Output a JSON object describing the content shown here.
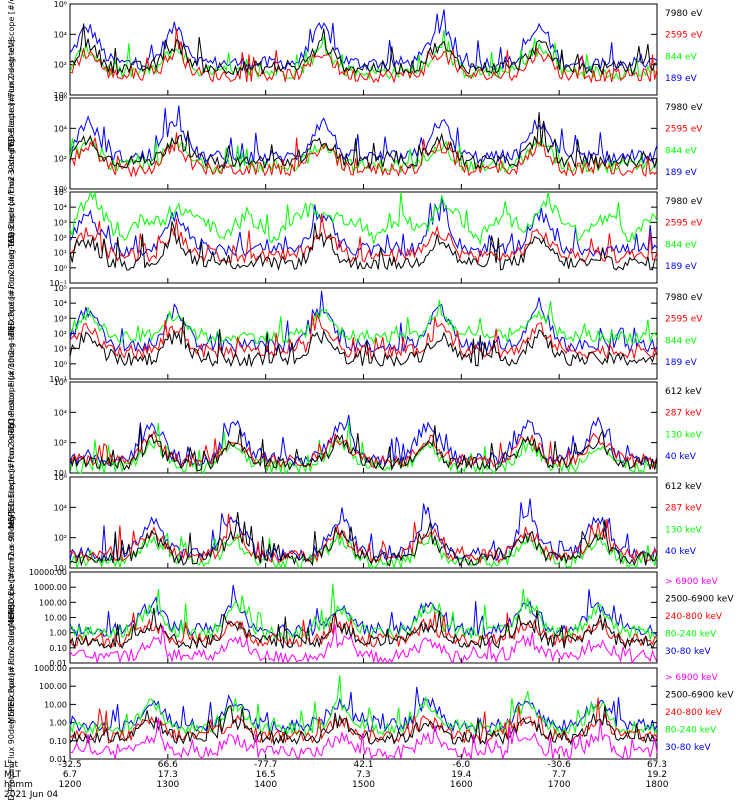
{
  "figure": {
    "date_label": "2021 Jun 04",
    "row_labels": [
      "Lat",
      "MLT",
      "hhmm"
    ],
    "colors": {
      "blue": "#0000ff",
      "red": "#ff0000",
      "green": "#00ff00",
      "black": "#000000",
      "magenta": "#ff00ff"
    }
  },
  "chart_data": [
    {
      "type": "line",
      "ylabel": "TED Electron Flux 0deg telescope [#/cm2-s-str-eV]",
      "ylim": [
        1,
        1000000
      ],
      "yscale": "log",
      "yticks": [
        "10⁰",
        "10²",
        "10⁴",
        "10⁶"
      ],
      "series": [
        {
          "name": "7980 eV",
          "color": "#000000"
        },
        {
          "name": "2595 eV",
          "color": "#ff0000"
        },
        {
          "name": "844 eV",
          "color": "#00ff00"
        },
        {
          "name": "189 eV",
          "color": "#0000ff"
        }
      ]
    },
    {
      "type": "line",
      "ylabel": "TED Electron Flux 30deg telescope [#/cm2-s-str-eV]",
      "ylim": [
        1,
        1000000
      ],
      "yscale": "log",
      "yticks": [
        "10⁰",
        "10²",
        "10⁴",
        "10⁶"
      ],
      "series": [
        {
          "name": "7980 eV",
          "color": "#000000"
        },
        {
          "name": "2595 eV",
          "color": "#ff0000"
        },
        {
          "name": "844 eV",
          "color": "#00ff00"
        },
        {
          "name": "189 eV",
          "color": "#0000ff"
        }
      ]
    },
    {
      "type": "line",
      "ylabel": "TED Proton Flux 0deg telescope [#/cm2-s-str-eV]",
      "ylim": [
        0.1,
        100000
      ],
      "yscale": "log",
      "yticks": [
        "10⁻¹",
        "10⁰",
        "10¹",
        "10²",
        "10³",
        "10⁴",
        "10⁵"
      ],
      "series": [
        {
          "name": "7980 eV",
          "color": "#000000"
        },
        {
          "name": "2595 eV",
          "color": "#ff0000"
        },
        {
          "name": "844 eV",
          "color": "#00ff00"
        },
        {
          "name": "189 eV",
          "color": "#0000ff"
        }
      ]
    },
    {
      "type": "line",
      "ylabel": "TED Proton Flux 30deg telescope [#/cm2-s-str-eV]",
      "ylim": [
        0.1,
        100000
      ],
      "yscale": "log",
      "yticks": [
        "10⁻¹",
        "10⁰",
        "10¹",
        "10²",
        "10³",
        "10⁴",
        "10⁵"
      ],
      "series": [
        {
          "name": "7980 eV",
          "color": "#000000"
        },
        {
          "name": "2595 eV",
          "color": "#ff0000"
        },
        {
          "name": "844 eV",
          "color": "#00ff00"
        },
        {
          "name": "189 eV",
          "color": "#0000ff"
        }
      ]
    },
    {
      "type": "line",
      "ylabel": "MEPED Electron Flux 0deg telescope [#/cm2-s-str]",
      "ylim": [
        10,
        10000000
      ],
      "yscale": "log",
      "yticks": [
        "10¹",
        "10²",
        "10⁴",
        "10⁶"
      ],
      "series": [
        {
          "name": "612 keV",
          "color": "#000000"
        },
        {
          "name": "287 keV",
          "color": "#ff0000"
        },
        {
          "name": "130 keV",
          "color": "#00ff00"
        },
        {
          "name": "40 keV",
          "color": "#0000ff"
        }
      ]
    },
    {
      "type": "line",
      "ylabel": "MEPED Electron Flux 90deg telescope [#/cm2-s-str]",
      "ylim": [
        10,
        10000000
      ],
      "yscale": "log",
      "yticks": [
        "10¹",
        "10²",
        "10⁴",
        "10⁶"
      ],
      "series": [
        {
          "name": "612 keV",
          "color": "#000000"
        },
        {
          "name": "287 keV",
          "color": "#ff0000"
        },
        {
          "name": "130 keV",
          "color": "#00ff00"
        },
        {
          "name": "40 keV",
          "color": "#0000ff"
        }
      ]
    },
    {
      "type": "line",
      "ylabel": "MEPED Proton Flux 0deg telescope [#/cm2-s-str-keV]",
      "ylim": [
        0.01,
        10000
      ],
      "yscale": "log",
      "yticks": [
        "0.01",
        "0.10",
        "1.00",
        "10.00",
        "100.00",
        "1000.00",
        "10000.00"
      ],
      "series": [
        {
          "name": "> 6900 keV",
          "color": "#ff00ff"
        },
        {
          "name": "2500-6900 keV",
          "color": "#000000"
        },
        {
          "name": "240-800 keV",
          "color": "#ff0000"
        },
        {
          "name": "80-240 keV",
          "color": "#00ff00"
        },
        {
          "name": "30-80 keV",
          "color": "#0000ff"
        }
      ]
    },
    {
      "type": "line",
      "ylabel": "MEPED Proton Flux 90deg telescope [#/cm2-s-str-keV]",
      "ylim": [
        0.01,
        10000
      ],
      "yscale": "log",
      "yticks": [
        "0.01",
        "0.10",
        "1.00",
        "10.00",
        "100.00",
        "1000.00"
      ],
      "series": [
        {
          "name": "> 6900 keV",
          "color": "#ff00ff"
        },
        {
          "name": "2500-6900 keV",
          "color": "#000000"
        },
        {
          "name": "240-800 keV",
          "color": "#ff0000"
        },
        {
          "name": "80-240 keV",
          "color": "#00ff00"
        },
        {
          "name": "30-80 keV",
          "color": "#0000ff"
        }
      ]
    }
  ],
  "x_axis": {
    "ticks": [
      {
        "hhmm": "1200",
        "lat": "-32.5",
        "mlt": "6.7"
      },
      {
        "hhmm": "1300",
        "lat": "66.6",
        "mlt": "17.3"
      },
      {
        "hhmm": "1400",
        "lat": "-77.7",
        "mlt": "16.5"
      },
      {
        "hhmm": "1500",
        "lat": "42.1",
        "mlt": "7.3"
      },
      {
        "hhmm": "1600",
        "lat": "-6.0",
        "mlt": "19.4"
      },
      {
        "hhmm": "1700",
        "lat": "-30.6",
        "mlt": "7.7"
      },
      {
        "hhmm": "1800",
        "lat": "67.3",
        "mlt": "19.2"
      }
    ],
    "xlim": [
      1200,
      1800
    ]
  }
}
